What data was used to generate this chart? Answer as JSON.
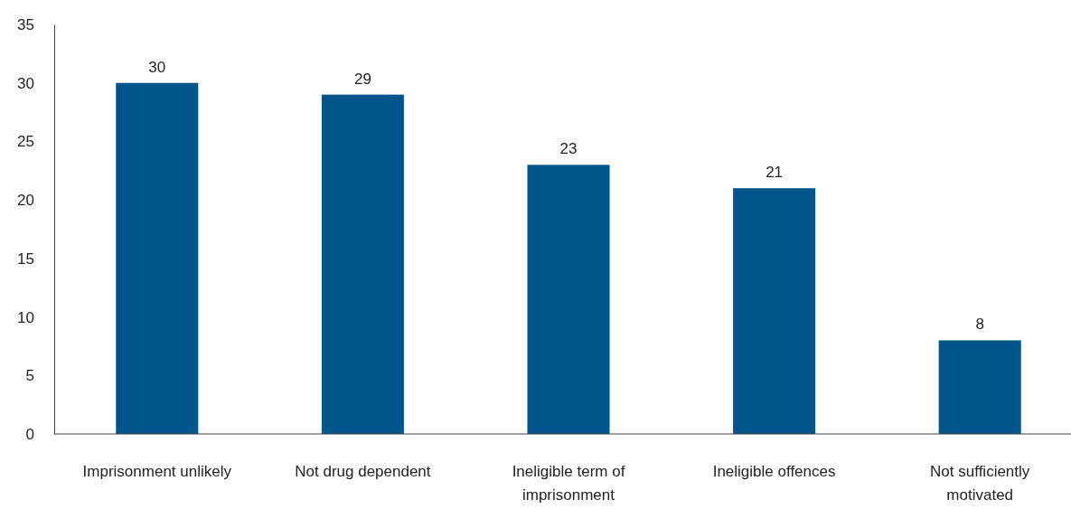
{
  "chart_data": {
    "type": "bar",
    "categories": [
      "Imprisonment unlikely",
      "Not drug dependent",
      "Ineligible term of imprisonment",
      "Ineligible offences",
      "Not sufficiently motivated"
    ],
    "values": [
      30,
      29,
      23,
      21,
      8
    ],
    "color": "#00558a",
    "ylim": [
      0,
      35
    ],
    "yticks": [
      0,
      5,
      10,
      15,
      20,
      25,
      30,
      35
    ],
    "grid": false,
    "data_labels": true
  }
}
